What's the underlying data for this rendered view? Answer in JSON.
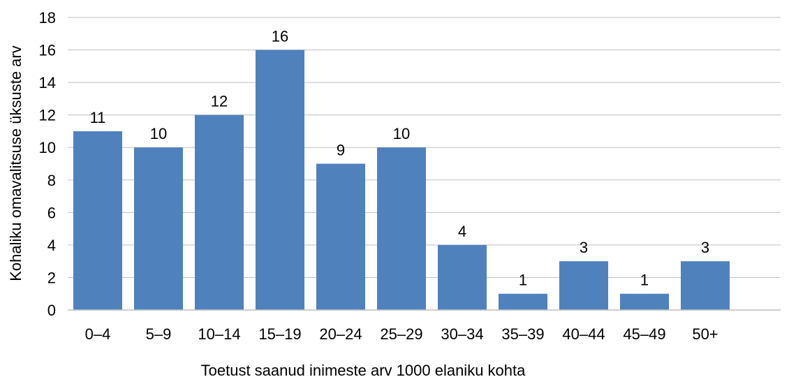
{
  "chart_data": {
    "type": "bar",
    "title": "",
    "xlabel": "Toetust saanud inimeste arv 1000 elaniku kohta",
    "ylabel": "Kohaliku omavalitsuse üksuste arv",
    "categories": [
      "0–4",
      "5–9",
      "10–14",
      "15–19",
      "20–24",
      "25–29",
      "30–34",
      "35–39",
      "40–44",
      "45–49",
      "50+"
    ],
    "values": [
      11,
      10,
      12,
      16,
      9,
      10,
      4,
      1,
      3,
      1,
      3
    ],
    "ylim": [
      0,
      18
    ],
    "yticks": [
      0,
      2,
      4,
      6,
      8,
      10,
      12,
      14,
      16,
      18
    ],
    "grid": true,
    "legend": "none",
    "bar_color": "#4F81BD",
    "grid_color": "#BFBFBF"
  }
}
